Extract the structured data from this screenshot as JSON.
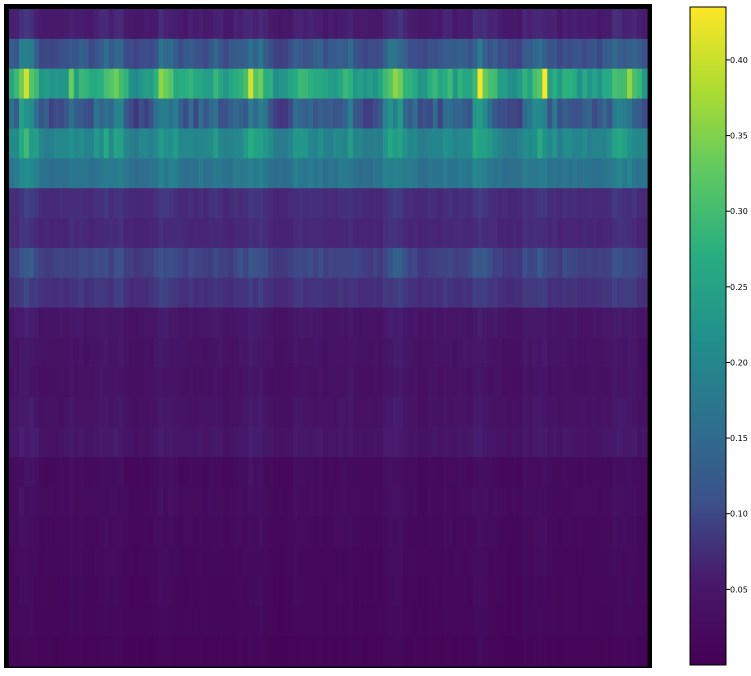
{
  "chart_data": {
    "type": "heatmap",
    "title": "",
    "xlabel": "",
    "ylabel": "",
    "colormap": "viridis",
    "vmin": 0.0,
    "vmax": 0.435,
    "axes_visible": false,
    "frame_color": "#000000",
    "colorbar": {
      "ticks": [
        0.05,
        0.1,
        0.15,
        0.2,
        0.25,
        0.3,
        0.35,
        0.4
      ],
      "tick_labels": [
        "0.05",
        "0.10",
        "0.15",
        "0.20",
        "0.25",
        "0.30",
        "0.35",
        "0.40"
      ],
      "placement": "right"
    },
    "n_rows": 22,
    "n_cols": 128,
    "row_base_values": [
      0.03,
      0.085,
      0.2,
      0.07,
      0.17,
      0.15,
      0.055,
      0.05,
      0.075,
      0.06,
      0.025,
      0.022,
      0.02,
      0.022,
      0.025,
      0.01,
      0.012,
      0.01,
      0.009,
      0.008,
      0.008,
      0.006
    ],
    "row_peak_values": [
      0.08,
      0.2,
      0.435,
      0.28,
      0.3,
      0.22,
      0.09,
      0.08,
      0.14,
      0.1,
      0.05,
      0.045,
      0.04,
      0.045,
      0.05,
      0.03,
      0.028,
      0.025,
      0.022,
      0.02,
      0.018,
      0.015
    ],
    "brightest_cell": {
      "row": 2,
      "col": 107,
      "value": 0.435
    }
  }
}
